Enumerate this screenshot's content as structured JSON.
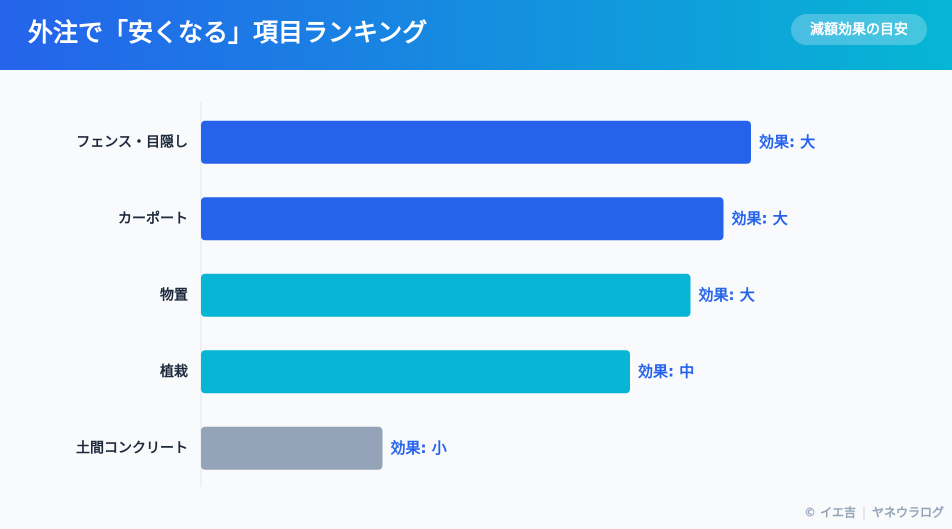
{
  "chart_data": {
    "type": "bar",
    "orientation": "horizontal",
    "title": "外注で「安くなる」項目ランキング",
    "badge": "減額効果の目安",
    "categories": [
      "フェンス・目隠し",
      "カーポート",
      "物置",
      "植栽",
      "土間コンクリート"
    ],
    "values": [
      100,
      95,
      89,
      78,
      33
    ],
    "effect_labels": [
      "効果: 大",
      "効果: 大",
      "効果: 大",
      "効果: 中",
      "効果: 小"
    ],
    "colors": [
      "#2563eb",
      "#2563eb",
      "#06b6d4",
      "#06b6d4",
      "#94a3b8"
    ],
    "xlim": [
      0,
      100
    ],
    "footer": [
      "© イエ吉",
      "ヤネウラログ"
    ]
  }
}
